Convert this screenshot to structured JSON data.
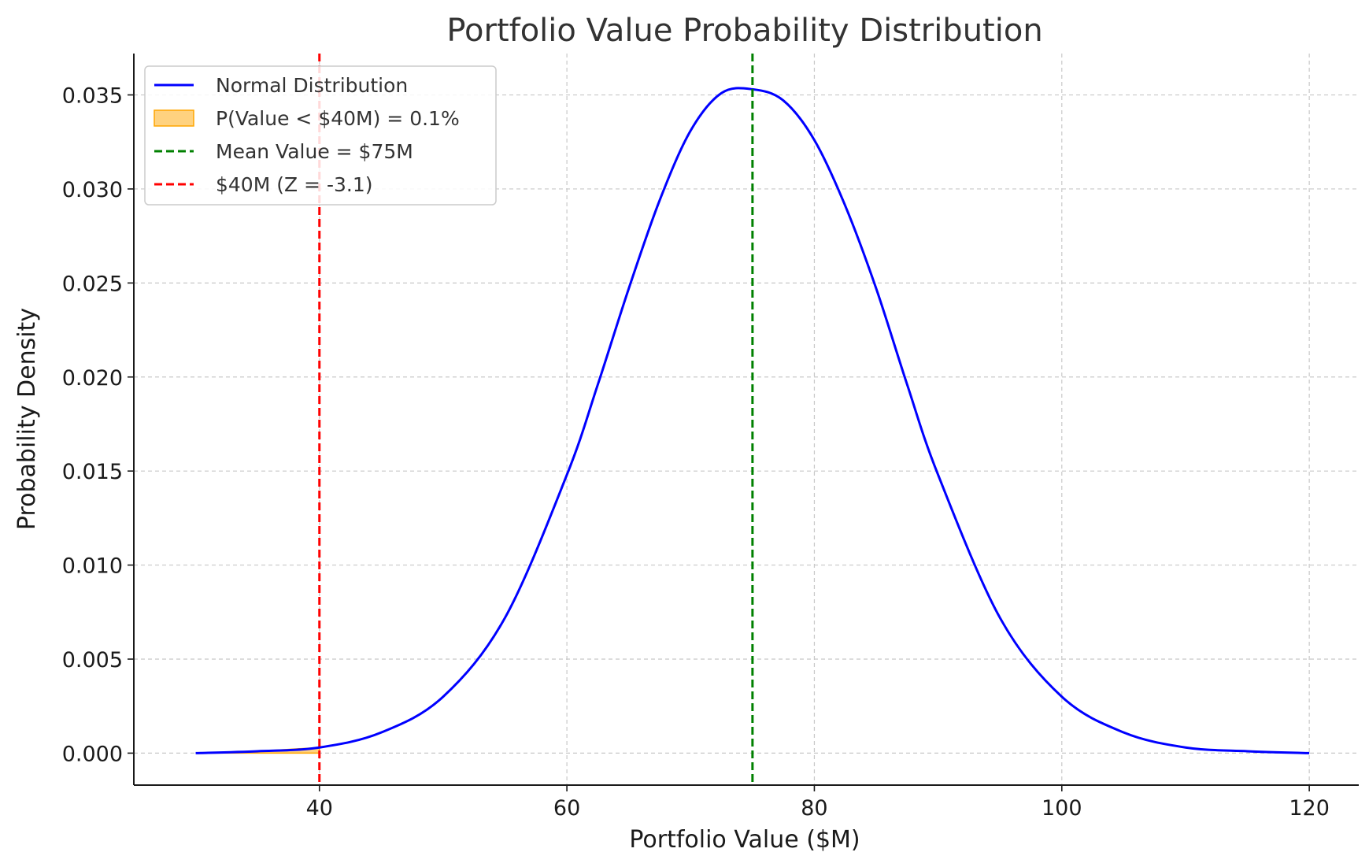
{
  "chart_data": {
    "type": "line",
    "title": "Portfolio Value Probability Distribution",
    "xlabel": "Portfolio Value ($M)",
    "ylabel": "Probability Density",
    "xlim": [
      25,
      124
    ],
    "ylim": [
      -0.0017,
      0.0372
    ],
    "x_ticks": [
      40,
      60,
      80,
      100,
      120
    ],
    "x_tick_labels": [
      "40",
      "60",
      "80",
      "100",
      "120"
    ],
    "y_ticks": [
      0.0,
      0.005,
      0.01,
      0.015,
      0.02,
      0.025,
      0.03,
      0.035
    ],
    "y_tick_labels": [
      "0.000",
      "0.005",
      "0.010",
      "0.015",
      "0.020",
      "0.025",
      "0.030",
      "0.035"
    ],
    "grid": true,
    "legend_position": "top-left",
    "series": [
      {
        "name": "Normal Distribution",
        "kind": "line",
        "color": "#0000ff",
        "x": [
          30,
          35,
          40,
          45,
          50,
          55,
          60,
          62.5,
          65,
          67.5,
          70,
          72.5,
          75,
          77.5,
          80,
          82.5,
          85,
          87.5,
          90,
          95,
          100,
          105,
          110,
          115,
          120
        ],
        "y": [
          0.0,
          0.0001,
          0.0003,
          0.0011,
          0.003,
          0.0072,
          0.0148,
          0.0196,
          0.0247,
          0.0294,
          0.0331,
          0.0351,
          0.0353,
          0.0347,
          0.0326,
          0.0291,
          0.0247,
          0.0196,
          0.0148,
          0.0072,
          0.003,
          0.0011,
          0.0003,
          0.0001,
          0.0
        ]
      },
      {
        "name": "P(Value < $40M) = 0.1%",
        "kind": "area",
        "color": "#ffa500",
        "x": [
          30,
          32.5,
          35,
          37.5,
          40
        ],
        "y": [
          0.0,
          0.0,
          0.0001,
          0.0002,
          0.0003
        ]
      },
      {
        "name": "Mean Value = $75M",
        "kind": "vline",
        "color": "#008000",
        "x": 75
      },
      {
        "name": "$40M (Z = -3.1)",
        "kind": "vline",
        "color": "#ff0000",
        "x": 40
      }
    ]
  }
}
